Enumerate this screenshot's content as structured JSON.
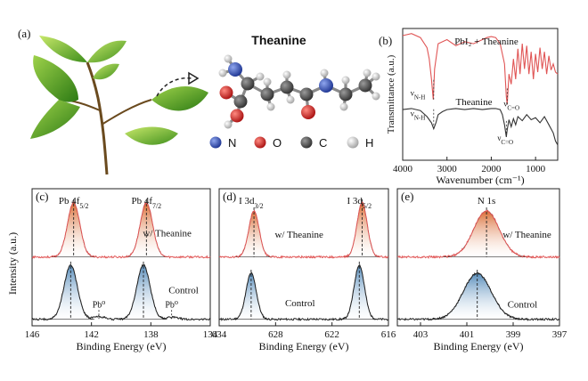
{
  "panel_a": {
    "label": "(a)",
    "molecule_title": "Theanine",
    "legend": [
      {
        "symbol": "N",
        "color": "#2b48a8"
      },
      {
        "symbol": "O",
        "color": "#d6201e"
      },
      {
        "symbol": "C",
        "color": "#505050"
      },
      {
        "symbol": "H",
        "color": "#c8c8c8"
      }
    ]
  },
  "shared": {
    "intensity_ylabel": "Intensity (a.u.)",
    "binding_energy_xlabel": "Binding  Energy  (eV)",
    "colors": {
      "theanine_spectrum": "#e05555",
      "control_spectrum": "#222222",
      "fit_orange": "#d8672c",
      "fit_blue": "#4d86b7"
    }
  },
  "chart_data": [
    {
      "panel": "(b)",
      "type": "line",
      "xlabel": "Wavenumber (cm⁻¹)",
      "ylabel": "Transmittance (a.u.)",
      "xlim": [
        4000,
        500
      ],
      "xticks": [
        4000,
        3000,
        2000,
        1000
      ],
      "series": [
        {
          "name": "PbI₂ + Theanine",
          "color": "#e05555",
          "x": [
            4000,
            3800,
            3600,
            3450,
            3400,
            3350,
            3310,
            3280,
            3200,
            3000,
            2800,
            2600,
            2400,
            2200,
            2100,
            2000,
            1900,
            1800,
            1700,
            1660,
            1640,
            1600,
            1550,
            1500,
            1450,
            1400,
            1350,
            1300,
            1250,
            1200,
            1150,
            1100,
            1050,
            1000,
            950,
            900,
            850,
            800,
            750,
            700,
            650,
            600,
            550,
            500
          ],
          "y": [
            0.78,
            0.8,
            0.76,
            0.66,
            0.55,
            0.35,
            0.15,
            0.45,
            0.7,
            0.74,
            0.68,
            0.72,
            0.7,
            0.74,
            0.76,
            0.77,
            0.76,
            0.7,
            0.5,
            0.18,
            0.1,
            0.4,
            0.3,
            0.55,
            0.35,
            0.65,
            0.4,
            0.7,
            0.45,
            0.68,
            0.4,
            0.62,
            0.35,
            0.6,
            0.42,
            0.66,
            0.45,
            0.62,
            0.4,
            0.58,
            0.44,
            0.5,
            0.42,
            0.4
          ]
        },
        {
          "name": "Theanine",
          "color": "#333333",
          "x": [
            4000,
            3800,
            3600,
            3450,
            3400,
            3350,
            3300,
            3250,
            3200,
            3100,
            3000,
            2800,
            2600,
            2400,
            2200,
            2000,
            1900,
            1800,
            1750,
            1700,
            1660,
            1640,
            1600,
            1550,
            1500,
            1450,
            1400,
            1300,
            1200,
            1100,
            1000,
            900,
            800,
            700,
            600,
            550,
            500
          ],
          "y": [
            0.05,
            0.06,
            0.04,
            -0.02,
            -0.05,
            -0.08,
            -0.14,
            -0.08,
            0.0,
            0.03,
            0.05,
            0.06,
            0.05,
            0.06,
            0.05,
            0.06,
            0.06,
            0.05,
            0.0,
            -0.1,
            -0.22,
            -0.15,
            -0.05,
            -0.12,
            -0.04,
            -0.1,
            -0.02,
            -0.06,
            0.0,
            -0.05,
            -0.03,
            -0.08,
            -0.02,
            -0.1,
            -0.18,
            -0.26,
            -0.3
          ]
        }
      ],
      "annotations": [
        {
          "text": "νN-H",
          "x": 3300,
          "series": "PbI₂ + Theanine"
        },
        {
          "text": "νC=O",
          "x": 1640,
          "series": "PbI₂ + Theanine"
        },
        {
          "text": "νN-H",
          "x": 3300,
          "series": "Theanine"
        },
        {
          "text": "νC=O",
          "x": 1660,
          "series": "Theanine"
        }
      ]
    },
    {
      "panel": "(c)",
      "type": "line",
      "xlabel": "Binding  Energy  (eV)",
      "ylabel": "Intensity (a.u.)",
      "xlim": [
        146,
        134
      ],
      "xticks": [
        146,
        142,
        138,
        134
      ],
      "peak_labels": [
        {
          "text": "Pb 4f5/2",
          "x": 143.2
        },
        {
          "text": "Pb 4f7/2",
          "x": 138.3
        }
      ],
      "series": [
        {
          "name": "w/ Theanine",
          "offset": 1.15,
          "fill": "#d8672c",
          "peaks": [
            {
              "center": 143.2,
              "height": 1.0,
              "width": 0.42
            },
            {
              "center": 138.3,
              "height": 1.0,
              "width": 0.42
            }
          ]
        },
        {
          "name": "Control",
          "offset": 0.0,
          "fill": "#4d86b7",
          "peaks": [
            {
              "center": 143.4,
              "height": 1.0,
              "width": 0.45
            },
            {
              "center": 138.5,
              "height": 1.0,
              "width": 0.45
            },
            {
              "center": 141.5,
              "height": 0.05,
              "width": 0.4
            },
            {
              "center": 136.6,
              "height": 0.04,
              "width": 0.4
            }
          ]
        }
      ],
      "annotations": [
        {
          "text": "w/ Theanine",
          "x": 136.9,
          "series": "w/ Theanine"
        },
        {
          "text": "Control",
          "x": 135.8,
          "series": "Control"
        },
        {
          "text": "Pb⁰",
          "x": 141.5,
          "series": "Control"
        },
        {
          "text": "Pb⁰",
          "x": 136.6,
          "series": "Control"
        }
      ]
    },
    {
      "panel": "(d)",
      "type": "line",
      "xlabel": "Binding  Energy  (eV)",
      "xlim": [
        634,
        616
      ],
      "xticks": [
        634,
        628,
        622,
        616
      ],
      "peak_labels": [
        {
          "text": "I 3d3/2",
          "x": 630.6
        },
        {
          "text": "I 3d5/2",
          "x": 619.1
        }
      ],
      "series": [
        {
          "name": "w/ Theanine",
          "offset": 1.15,
          "fill": "#d8672c",
          "peaks": [
            {
              "center": 630.3,
              "height": 0.85,
              "width": 0.55
            },
            {
              "center": 618.8,
              "height": 1.0,
              "width": 0.55
            }
          ]
        },
        {
          "name": "Control",
          "offset": 0.0,
          "fill": "#4d86b7",
          "peaks": [
            {
              "center": 630.6,
              "height": 0.85,
              "width": 0.55
            },
            {
              "center": 619.1,
              "height": 1.0,
              "width": 0.55
            }
          ]
        }
      ],
      "annotations": [
        {
          "text": "w/ Theanine",
          "x": 625.5,
          "series": "w/ Theanine"
        },
        {
          "text": "Control",
          "x": 625.4,
          "series": "Control"
        }
      ]
    },
    {
      "panel": "(e)",
      "type": "line",
      "xlabel": "Binding  Energy  (eV)",
      "xlim": [
        404,
        397
      ],
      "xticks": [
        403,
        401,
        399,
        397
      ],
      "peak_labels": [
        {
          "text": "N 1s",
          "x": 400.15
        }
      ],
      "series": [
        {
          "name": "w/ Theanine",
          "offset": 1.15,
          "fill": "#d8672c",
          "peaks": [
            {
              "center": 400.15,
              "height": 0.85,
              "width": 0.55
            }
          ]
        },
        {
          "name": "Control",
          "offset": 0.0,
          "fill": "#4d86b7",
          "peaks": [
            {
              "center": 400.55,
              "height": 0.85,
              "width": 0.6
            }
          ]
        }
      ],
      "annotations": [
        {
          "text": "w/ Theanine",
          "x": 398.4,
          "series": "w/ Theanine"
        },
        {
          "text": "Control",
          "x": 398.6,
          "series": "Control"
        }
      ]
    }
  ]
}
